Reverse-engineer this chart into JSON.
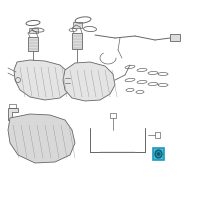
{
  "bg_color": "#ffffff",
  "line_color": "#666666",
  "light_line": "#999999",
  "fill_tank": "#e4e4e4",
  "fill_shield": "#d8d8d8",
  "fill_part": "#dddddd",
  "highlight_color": "#1a9bbf",
  "highlight_fill": "#4ab8d4",
  "fig_size": [
    2.0,
    2.0
  ],
  "dpi": 100
}
